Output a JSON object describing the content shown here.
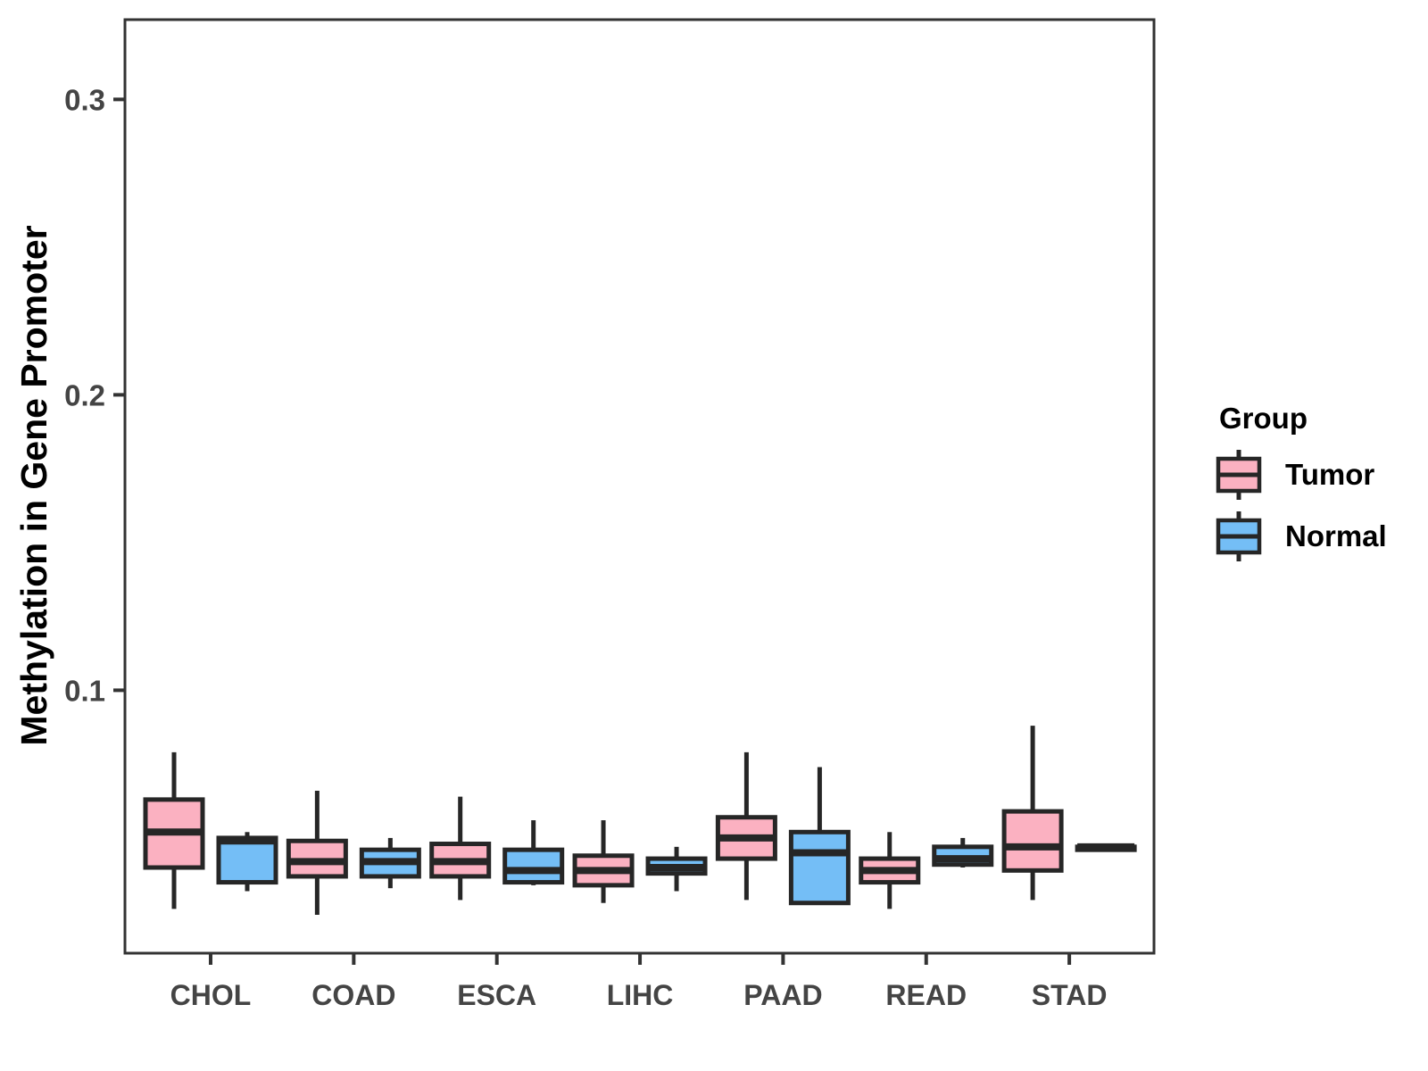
{
  "chart_data": {
    "type": "boxplot",
    "title": "",
    "xlabel": "",
    "ylabel": "Methylation in Gene Promoter",
    "ylim": [
      0.011,
      0.327
    ],
    "yticks": [
      0.1,
      0.2,
      0.3
    ],
    "ytick_labels": [
      "0.1",
      "0.2",
      "0.3"
    ],
    "categories": [
      "CHOL",
      "COAD",
      "ESCA",
      "LIHC",
      "PAAD",
      "READ",
      "STAD"
    ],
    "grid": false,
    "legend": {
      "title": "Group",
      "position": "right",
      "entries": [
        {
          "label": "Tumor",
          "color": "#FBB1C1"
        },
        {
          "label": "Normal",
          "color": "#74BEF6"
        }
      ]
    },
    "style": {
      "box_stroke": "#262626",
      "panel_border": "#333333",
      "tick_color": "#333333",
      "axis_text_color": "#444444",
      "title_color": "#000000"
    },
    "series": [
      {
        "name": "Tumor",
        "color": "#FBB1C1",
        "boxes": [
          {
            "category": "CHOL",
            "min": 0.026,
            "q1": 0.04,
            "median": 0.052,
            "q3": 0.063,
            "max": 0.079
          },
          {
            "category": "COAD",
            "min": 0.024,
            "q1": 0.037,
            "median": 0.042,
            "q3": 0.049,
            "max": 0.066
          },
          {
            "category": "ESCA",
            "min": 0.029,
            "q1": 0.037,
            "median": 0.042,
            "q3": 0.048,
            "max": 0.064
          },
          {
            "category": "LIHC",
            "min": 0.028,
            "q1": 0.034,
            "median": 0.039,
            "q3": 0.044,
            "max": 0.056
          },
          {
            "category": "PAAD",
            "min": 0.029,
            "q1": 0.043,
            "median": 0.05,
            "q3": 0.057,
            "max": 0.079
          },
          {
            "category": "READ",
            "min": 0.026,
            "q1": 0.035,
            "median": 0.039,
            "q3": 0.043,
            "max": 0.052
          },
          {
            "category": "STAD",
            "min": 0.029,
            "q1": 0.039,
            "median": 0.047,
            "q3": 0.059,
            "max": 0.088
          }
        ]
      },
      {
        "name": "Normal",
        "color": "#74BEF6",
        "boxes": [
          {
            "category": "CHOL",
            "min": 0.032,
            "q1": 0.035,
            "median": 0.049,
            "q3": 0.05,
            "max": 0.052
          },
          {
            "category": "COAD",
            "min": 0.033,
            "q1": 0.037,
            "median": 0.042,
            "q3": 0.046,
            "max": 0.05
          },
          {
            "category": "ESCA",
            "min": 0.034,
            "q1": 0.035,
            "median": 0.039,
            "q3": 0.046,
            "max": 0.056
          },
          {
            "category": "LIHC",
            "min": 0.032,
            "q1": 0.038,
            "median": 0.04,
            "q3": 0.043,
            "max": 0.047
          },
          {
            "category": "PAAD",
            "min": 0.028,
            "q1": 0.028,
            "median": 0.045,
            "q3": 0.052,
            "max": 0.074
          },
          {
            "category": "READ",
            "min": 0.04,
            "q1": 0.041,
            "median": 0.043,
            "q3": 0.047,
            "max": 0.05
          },
          {
            "category": "STAD",
            "min": 0.046,
            "q1": 0.046,
            "median": 0.047,
            "q3": 0.047,
            "max": 0.048
          }
        ]
      }
    ]
  }
}
